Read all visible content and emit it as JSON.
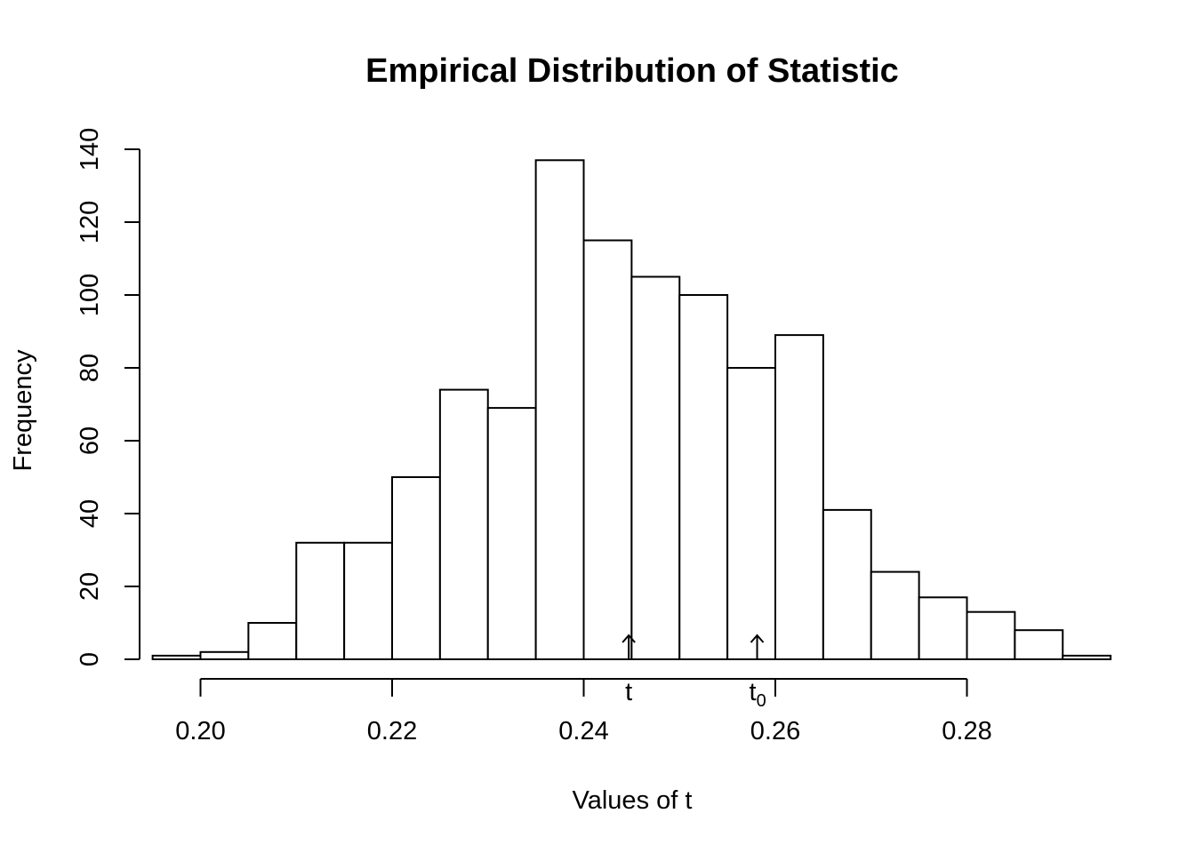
{
  "chart_data": {
    "type": "bar",
    "title": "Empirical Distribution of Statistic",
    "xlabel": "Values of t",
    "ylabel": "Frequency",
    "bins": [
      {
        "from": 0.195,
        "to": 0.2,
        "count": 1
      },
      {
        "from": 0.2,
        "to": 0.205,
        "count": 2
      },
      {
        "from": 0.205,
        "to": 0.21,
        "count": 10
      },
      {
        "from": 0.21,
        "to": 0.215,
        "count": 32
      },
      {
        "from": 0.215,
        "to": 0.22,
        "count": 32
      },
      {
        "from": 0.22,
        "to": 0.225,
        "count": 50
      },
      {
        "from": 0.225,
        "to": 0.23,
        "count": 74
      },
      {
        "from": 0.23,
        "to": 0.235,
        "count": 69
      },
      {
        "from": 0.235,
        "to": 0.24,
        "count": 137
      },
      {
        "from": 0.24,
        "to": 0.245,
        "count": 115
      },
      {
        "from": 0.245,
        "to": 0.25,
        "count": 105
      },
      {
        "from": 0.25,
        "to": 0.255,
        "count": 100
      },
      {
        "from": 0.255,
        "to": 0.26,
        "count": 80
      },
      {
        "from": 0.26,
        "to": 0.265,
        "count": 89
      },
      {
        "from": 0.265,
        "to": 0.27,
        "count": 41
      },
      {
        "from": 0.27,
        "to": 0.275,
        "count": 24
      },
      {
        "from": 0.275,
        "to": 0.28,
        "count": 17
      },
      {
        "from": 0.28,
        "to": 0.285,
        "count": 13
      },
      {
        "from": 0.285,
        "to": 0.29,
        "count": 8
      },
      {
        "from": 0.29,
        "to": 0.295,
        "count": 1
      }
    ],
    "x_ticks": [
      "0.20",
      "0.22",
      "0.24",
      "0.26",
      "0.28"
    ],
    "x_tick_values": [
      0.2,
      0.22,
      0.24,
      0.26,
      0.28
    ],
    "y_ticks": [
      "0",
      "20",
      "40",
      "60",
      "80",
      "100",
      "120",
      "140"
    ],
    "y_tick_values": [
      0,
      20,
      40,
      60,
      80,
      100,
      120,
      140
    ],
    "xlim": [
      0.195,
      0.295
    ],
    "ylim": [
      0,
      140
    ],
    "markers": [
      {
        "label": "t",
        "sub": "",
        "x": 0.2447
      },
      {
        "label": "t",
        "sub": "0",
        "x": 0.2581
      }
    ],
    "grid": false,
    "legend": "none"
  }
}
